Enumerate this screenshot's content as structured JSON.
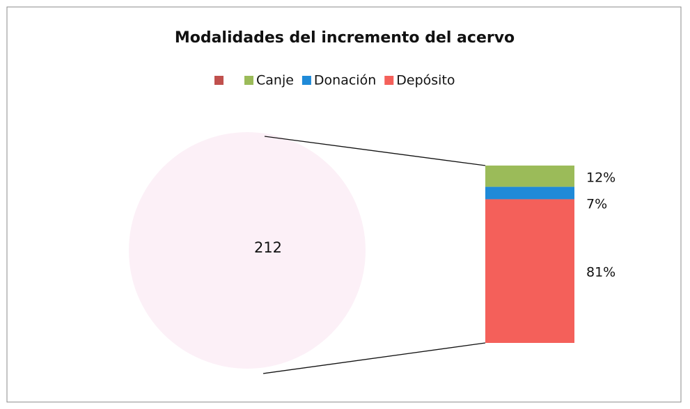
{
  "chart_data": {
    "type": "bar-of-pie",
    "title": "Modalidades del incremento del acervo",
    "categories": [
      null,
      "Canje",
      "Donación",
      "Depósito"
    ],
    "values": [
      212,
      12,
      7,
      81
    ],
    "value_labels": [
      "212",
      "12%",
      "7%",
      "81%"
    ],
    "colors": [
      "#c0504d",
      "#9bbb59",
      "#1f8ad8",
      "#f4605a"
    ],
    "pie_color": "#fcf0f7",
    "legend": "top"
  }
}
